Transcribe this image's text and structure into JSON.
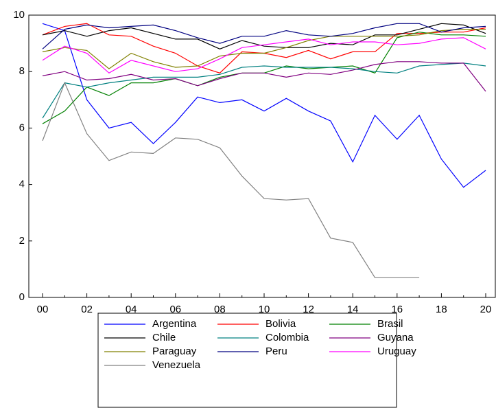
{
  "chart_data": {
    "type": "line",
    "categories": [
      "00",
      null,
      "02",
      null,
      "04",
      null,
      "06",
      null,
      "08",
      null,
      "10",
      null,
      "12",
      null,
      "14",
      null,
      "16",
      null,
      "18",
      null,
      "20"
    ],
    "ylim": [
      0,
      10
    ],
    "yticks": [
      0,
      2,
      4,
      6,
      8,
      10
    ],
    "legend": "bottom",
    "series": [
      {
        "name": "Argentina",
        "color": "#0000ff",
        "values": [
          9.7,
          9.45,
          7.0,
          6.0,
          6.2,
          5.45,
          6.2,
          7.1,
          6.9,
          7.0,
          6.6,
          7.05,
          6.6,
          6.25,
          4.8,
          6.45,
          5.6,
          6.45,
          4.9,
          3.9,
          4.5
        ]
      },
      {
        "name": "Bolivia",
        "color": "#ff0000",
        "values": [
          9.3,
          9.6,
          9.7,
          9.3,
          9.25,
          8.9,
          8.65,
          8.2,
          7.95,
          8.7,
          8.65,
          8.5,
          8.75,
          8.45,
          8.7,
          8.7,
          9.35,
          9.35,
          9.4,
          9.4,
          9.55
        ]
      },
      {
        "name": "Brasil",
        "color": "#008000",
        "values": [
          6.15,
          6.6,
          7.45,
          7.15,
          7.6,
          7.6,
          7.75,
          7.5,
          7.8,
          7.95,
          7.95,
          8.2,
          8.1,
          8.15,
          8.2,
          7.95,
          9.2,
          9.4,
          9.3,
          9.3,
          9.25
        ]
      },
      {
        "name": "Chile",
        "color": "#000000",
        "values": [
          9.3,
          9.45,
          9.25,
          9.45,
          9.55,
          9.35,
          9.15,
          9.15,
          8.8,
          9.1,
          8.9,
          8.85,
          8.85,
          9.0,
          8.95,
          9.3,
          9.3,
          9.5,
          9.7,
          9.65,
          9.35
        ]
      },
      {
        "name": "Colombia",
        "color": "#008080",
        "values": [
          6.35,
          7.6,
          7.45,
          7.6,
          7.7,
          7.8,
          7.8,
          7.8,
          7.9,
          8.15,
          8.2,
          8.15,
          8.15,
          8.15,
          8.1,
          8.0,
          7.95,
          8.2,
          8.25,
          8.3,
          8.2
        ]
      },
      {
        "name": "Guyana",
        "color": "#800080",
        "values": [
          7.85,
          8.0,
          7.7,
          7.75,
          7.9,
          7.7,
          7.75,
          7.5,
          7.75,
          7.95,
          7.95,
          7.8,
          7.95,
          7.9,
          8.05,
          8.25,
          8.35,
          8.35,
          8.3,
          8.3,
          7.3
        ]
      },
      {
        "name": "Paraguay",
        "color": "#808000",
        "values": [
          8.7,
          8.85,
          8.75,
          8.1,
          8.65,
          8.35,
          8.15,
          8.2,
          8.55,
          8.65,
          8.65,
          8.85,
          9.1,
          9.25,
          9.25,
          9.25,
          9.25,
          9.3,
          9.45,
          9.5,
          9.5
        ]
      },
      {
        "name": "Peru",
        "color": "#000080",
        "values": [
          8.8,
          9.5,
          9.65,
          9.55,
          9.6,
          9.65,
          9.45,
          9.2,
          9.0,
          9.25,
          9.25,
          9.45,
          9.3,
          9.25,
          9.35,
          9.55,
          9.7,
          9.7,
          9.4,
          9.55,
          9.6
        ]
      },
      {
        "name": "Uruguay",
        "color": "#ff00ff",
        "values": [
          8.4,
          8.9,
          8.65,
          7.95,
          8.4,
          8.2,
          8.0,
          8.1,
          8.45,
          8.85,
          8.95,
          9.05,
          9.15,
          8.95,
          9.05,
          9.05,
          8.95,
          9.0,
          9.15,
          9.2,
          8.8
        ]
      },
      {
        "name": "Venezuela",
        "color": "#808080",
        "values": [
          5.55,
          7.6,
          5.8,
          4.85,
          5.15,
          5.1,
          5.65,
          5.6,
          5.3,
          4.3,
          3.5,
          3.45,
          3.5,
          2.1,
          1.95,
          0.7,
          0.7,
          0.7,
          null,
          null,
          null
        ]
      }
    ]
  }
}
